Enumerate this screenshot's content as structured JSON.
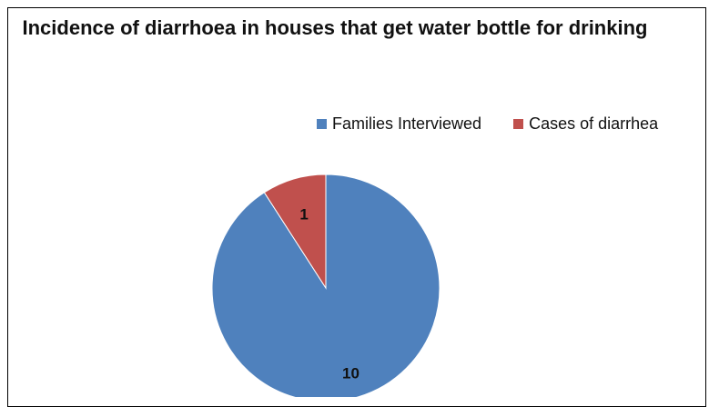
{
  "chart_data": {
    "type": "pie",
    "title": "Incidence of diarrhoea in houses that get water bottle for drinking",
    "categories": [
      "Families Interviewed",
      "Cases of diarrhea"
    ],
    "values": [
      10,
      1
    ],
    "colors": [
      "#4F81BD",
      "#C0504D"
    ],
    "legend": "top-right",
    "data_labels": [
      "10",
      "1"
    ]
  }
}
